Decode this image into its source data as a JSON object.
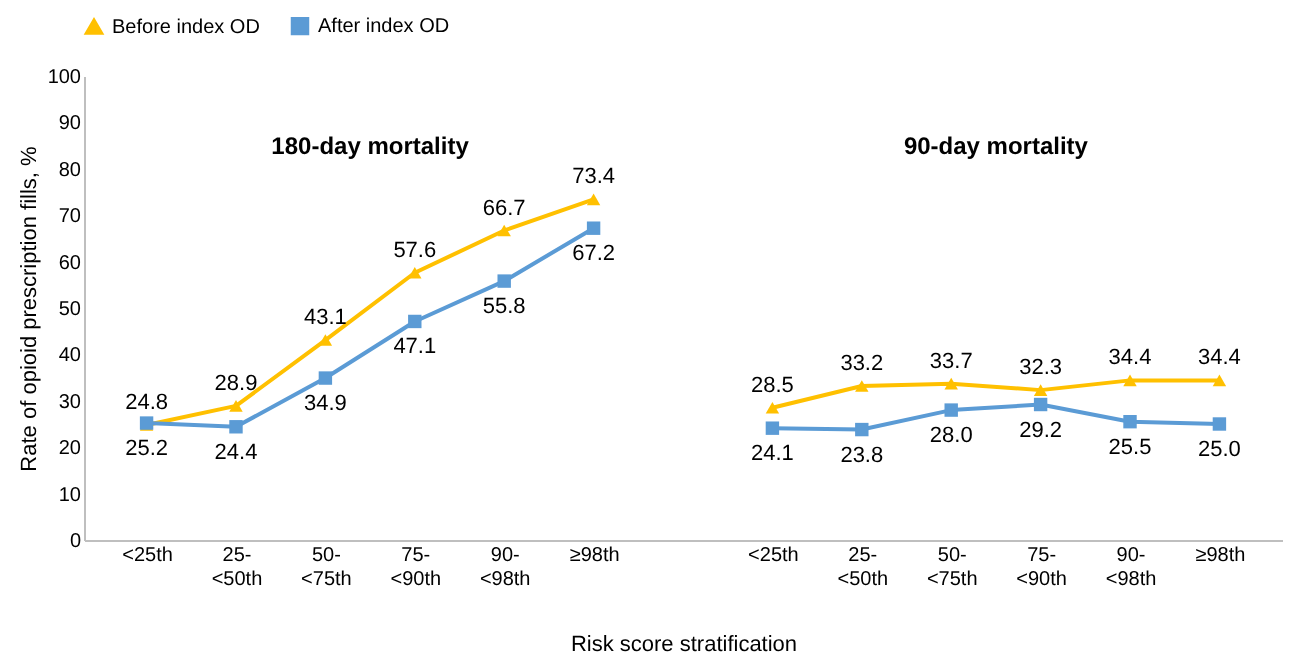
{
  "chart_data": {
    "type": "line",
    "categories": [
      "<25th",
      "25-<50th",
      "50-<75th",
      "75-<90th",
      "90-<98th",
      "≥98th",
      null,
      "<25th",
      "25-<50th",
      "50-<75th",
      "75-<90th",
      "90-<98th",
      "≥98th"
    ],
    "series": [
      {
        "name": "Before  index OD",
        "color": "#ffc000",
        "marker": "triangle",
        "values": [
          24.8,
          28.9,
          43.1,
          57.6,
          66.7,
          73.4,
          null,
          28.5,
          33.2,
          33.7,
          32.3,
          34.4,
          34.4
        ],
        "value_labels": [
          "24.8",
          "28.9",
          "43.1",
          "57.6",
          "66.7",
          "73.4",
          null,
          "28.5",
          "33.2",
          "33.7",
          "32.3",
          "34.4",
          "34.4"
        ]
      },
      {
        "name": "After index OD",
        "color": "#5b9bd5",
        "marker": "square",
        "values": [
          25.2,
          24.4,
          34.9,
          47.1,
          55.8,
          67.2,
          null,
          24.1,
          23.8,
          28.0,
          29.2,
          25.5,
          25.0
        ],
        "value_labels": [
          "25.2",
          "24.4",
          "34.9",
          "47.1",
          "55.8",
          "67.2",
          null,
          "24.1",
          "23.8",
          "28.0",
          "29.2",
          "25.5",
          "25.0"
        ]
      }
    ],
    "xlabel": "Risk score stratification",
    "ylabel": "Rate of opioid prescription fills, %",
    "ylim": [
      0,
      100
    ],
    "yticks": [
      0,
      10,
      20,
      30,
      40,
      50,
      60,
      70,
      80,
      90,
      100
    ],
    "annotations": [
      "180-day mortality",
      "90-day mortality"
    ],
    "grid": false,
    "legend": "top"
  }
}
